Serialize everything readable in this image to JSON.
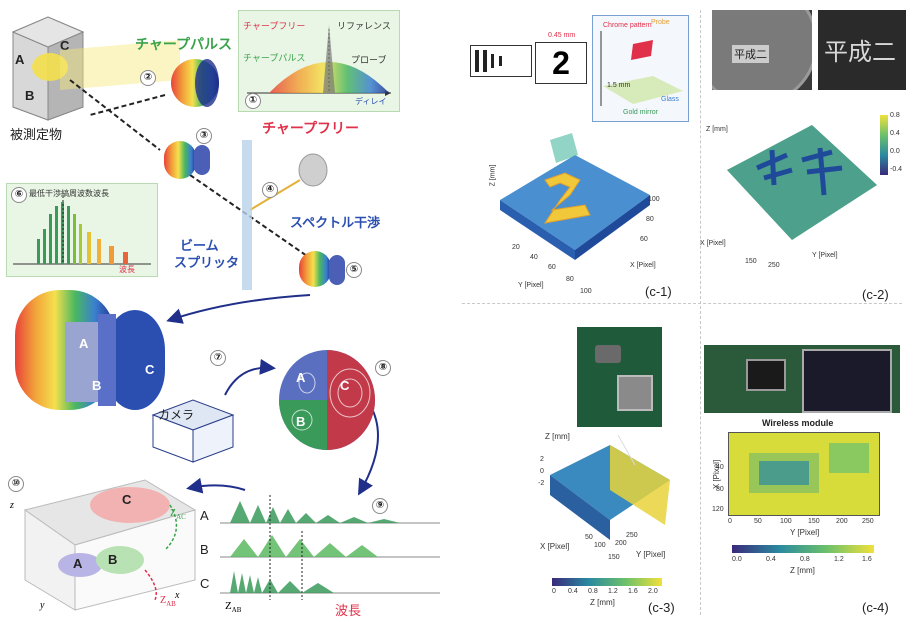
{
  "left": {
    "chirp_pulse": "チャープパルス",
    "object_label": "被測定物",
    "chirp_free": "チャープフリー",
    "spectral_interference": "スペクトル干渉",
    "beam_splitter_line1": "ビーム",
    "beam_splitter_line2": "スプリッタ",
    "camera": "カメラ",
    "inset1": {
      "chirp_free": "チャープフリー",
      "reference": "リファレンス",
      "chirp_pulse": "チャープパルス",
      "probe": "プローブ",
      "delay": "ディレイ"
    },
    "inset6": {
      "title": "最低干渉縞周波数波長",
      "wavelength": "波長"
    },
    "bottom": {
      "wavelength": "波長",
      "z_ab": "Z",
      "z_ab_sub": "AB",
      "z_ac": "Z",
      "z_ac_sub": "AC",
      "row_a": "A",
      "row_b": "B",
      "row_c": "C",
      "axis_z": "z",
      "axis_x": "x",
      "axis_y": "y"
    },
    "region_a": "A",
    "region_b": "B",
    "region_c": "C",
    "steps": [
      "①",
      "②",
      "③",
      "④",
      "⑤",
      "⑥",
      "⑦",
      "⑧",
      "⑨",
      "⑩"
    ]
  },
  "right": {
    "c1": {
      "caption": "(c-1)",
      "dim1": "0.45 mm",
      "dim2": "1.5 mm",
      "chrome": "Chrome pattern",
      "probe": "Probe",
      "glass": "Glass",
      "gold": "Gold mirror",
      "axis_z": "Z [mm]",
      "axis_x": "X [Pixel]",
      "axis_y": "Y [Pixel]",
      "ticks_x": [
        "20",
        "40",
        "60",
        "80",
        "100"
      ],
      "ticks_y": [
        "20",
        "40",
        "60",
        "80",
        "100"
      ],
      "ticks_xb": [
        "100",
        "80",
        "60",
        "40",
        "20"
      ],
      "glyph": "2"
    },
    "c2": {
      "caption": "(c-2)",
      "axis_z": "Z [mm]",
      "axis_x": "X [Pixel]",
      "axis_y": "Y [Pixel]",
      "colorbar_label": "Z [mm]",
      "colorbar_ticks": [
        "0.8",
        "0.4",
        "0.0",
        "-0.4"
      ],
      "ticks_bottom": [
        "150",
        "250",
        "50",
        "150",
        "250"
      ],
      "coin_text": "平成二"
    },
    "c3": {
      "caption": "(c-3)",
      "axis_z": "Z [mm]",
      "axis_x": "X [Pixel]",
      "axis_y": "Y [Pixel]",
      "colorbar_label": "Z [mm]",
      "colorbar_ticks": [
        "0",
        "0.4",
        "0.8",
        "1.2",
        "1.6",
        "2.0"
      ],
      "ticks_x": [
        "50",
        "100",
        "150"
      ],
      "ticks_y": [
        "200",
        "250"
      ],
      "z_ticks": [
        "2",
        "0",
        "-2"
      ]
    },
    "c4": {
      "caption": "(c-4)",
      "module_title": "Wireless module",
      "axis_x": "Y [Pixel]",
      "axis_y": "X [Pixel]",
      "colorbar_label": "Z [mm]",
      "colorbar_ticks": [
        "0.0",
        "0.4",
        "0.8",
        "1.2",
        "1.6"
      ],
      "ticks_x": [
        "0",
        "50",
        "100",
        "150",
        "200",
        "250"
      ],
      "ticks_y": [
        "40",
        "80",
        "120"
      ]
    }
  },
  "colors": {
    "accent_red": "#e0304a",
    "accent_green": "#3aa24a",
    "label_blue": "#2a4fb0",
    "arrow_navy": "#1f2f8a"
  }
}
